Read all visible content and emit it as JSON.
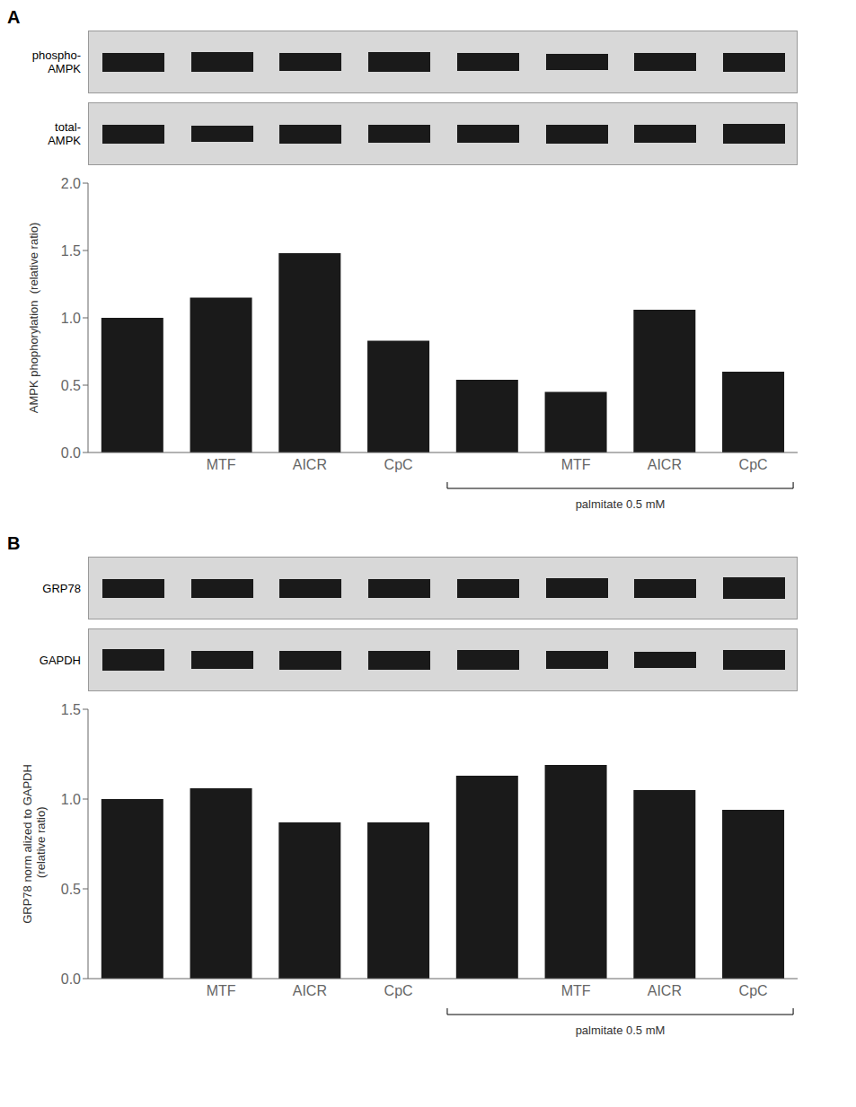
{
  "chart_data": [
    {
      "type": "bar",
      "title": "A",
      "categories": [
        null,
        "MTF",
        "AICR",
        "CpC",
        null,
        "MTF",
        "AICR",
        "CpC"
      ],
      "values": [
        1.0,
        1.15,
        1.48,
        0.83,
        0.54,
        0.45,
        1.06,
        0.6
      ],
      "color": "#1a1a1a",
      "ylim": [
        0,
        2.0
      ],
      "yticks": [
        {
          "value": 0.0,
          "label": "0.0"
        },
        0.5,
        {
          "value": 1.0,
          "label": "1.0"
        },
        1.5,
        {
          "value": 2.0,
          "label": "2.0"
        }
      ],
      "y_label": "AMPK phophorylation  (relative ratio)",
      "grid": false,
      "data_labels": false,
      "annotations": [
        {
          "text": "palmitate 0.5 mM",
          "span": [
            4,
            7
          ]
        }
      ],
      "blots": [
        {
          "label": "phospho-\nAMPK",
          "band_heights": [
            1.0,
            1.05,
            0.98,
            1.08,
            0.95,
            0.9,
            0.98,
            1.0
          ]
        },
        {
          "label": "total-\nAMPK",
          "band_heights": [
            1.0,
            0.9,
            1.0,
            0.95,
            0.98,
            1.0,
            0.95,
            1.05
          ]
        }
      ]
    },
    {
      "type": "bar",
      "title": "B",
      "categories": [
        null,
        "MTF",
        "AICR",
        "CpC",
        null,
        "MTF",
        "AICR",
        "CpC"
      ],
      "values": [
        1.0,
        1.06,
        0.87,
        0.87,
        1.13,
        1.19,
        1.05,
        0.94
      ],
      "color": "#1a1a1a",
      "ylim": [
        0,
        1.5
      ],
      "yticks": [
        {
          "value": 0.0,
          "label": "0.0"
        },
        0.5,
        {
          "value": 1.0,
          "label": "1.0"
        },
        1.5
      ],
      "y_label": "GRP78 norm alized to GAPDH\n (relative ratio)",
      "grid": false,
      "data_labels": false,
      "annotations": [
        {
          "text": "palmitate 0.5 mM",
          "span": [
            4,
            7
          ]
        }
      ],
      "blots": [
        {
          "label": "GRP78",
          "band_heights": [
            1.0,
            1.0,
            1.0,
            1.0,
            1.0,
            1.05,
            1.0,
            1.1
          ]
        },
        {
          "label": "GAPDH",
          "band_heights": [
            1.1,
            0.95,
            1.0,
            1.0,
            1.05,
            0.95,
            0.9,
            1.05
          ]
        }
      ]
    }
  ]
}
